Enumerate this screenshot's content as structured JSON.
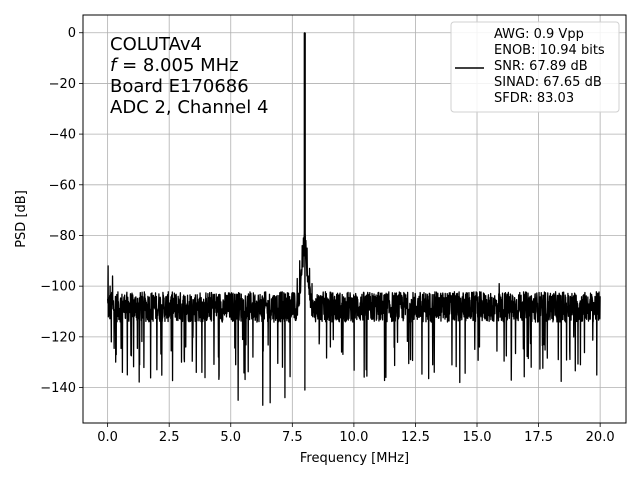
{
  "chart_data": {
    "type": "line",
    "xlabel": "Frequency [MHz]",
    "ylabel": "PSD [dB]",
    "xlim": [
      -1,
      21.05
    ],
    "ylim": [
      -154,
      7
    ],
    "xticks": [
      0.0,
      2.5,
      5.0,
      7.5,
      10.0,
      12.5,
      15.0,
      17.5,
      20.0
    ],
    "xtick_labels": [
      "0.0",
      "2.5",
      "5.0",
      "7.5",
      "10.0",
      "12.5",
      "15.0",
      "17.5",
      "20.0"
    ],
    "yticks": [
      0,
      -20,
      -40,
      -60,
      -80,
      -100,
      -120,
      -140
    ],
    "ytick_labels": [
      "0",
      "−20",
      "−40",
      "−60",
      "−80",
      "−100",
      "−120",
      "−140"
    ],
    "grid": true,
    "annotation_lines": [
      {
        "prefix": "",
        "italic": "",
        "text": "COLUTAv4"
      },
      {
        "prefix": "",
        "italic": "f",
        "text": " = 8.005 MHz"
      },
      {
        "prefix": "",
        "italic": "",
        "text": "Board E170686"
      },
      {
        "prefix": "",
        "italic": "",
        "text": "ADC 2, Channel 4"
      }
    ],
    "legend_placement": "top-right",
    "legend_lines": [
      "AWG: 0.9 Vpp",
      "ENOB: 10.94 bits",
      "SNR: 67.89 dB",
      "SINAD: 67.65 dB",
      "SFDR: 83.03"
    ],
    "series": [
      {
        "color": "#000000",
        "noise_floor_db": -110,
        "noise_spread_db": 10,
        "fundamental": {
          "x": 8.005,
          "y": 0
        },
        "skirt": {
          "x": 8.0,
          "y": -80,
          "half_width_mhz": 0.4
        },
        "points": [
          [
            0.0,
            -105
          ],
          [
            0.02,
            -92
          ],
          [
            0.05,
            -108
          ],
          [
            0.1,
            -100
          ],
          [
            0.15,
            -122
          ],
          [
            0.2,
            -96
          ],
          [
            0.3,
            -115
          ],
          [
            0.35,
            -127
          ],
          [
            0.5,
            -110
          ],
          [
            0.6,
            -134
          ],
          [
            0.7,
            -108
          ],
          [
            0.8,
            -135
          ],
          [
            1.0,
            -112
          ],
          [
            1.3,
            -131
          ],
          [
            1.6,
            -110
          ],
          [
            2.0,
            -133
          ],
          [
            2.5,
            -112
          ],
          [
            3.0,
            -130
          ],
          [
            3.3,
            -110
          ],
          [
            3.6,
            -134
          ],
          [
            4.0,
            -113
          ],
          [
            4.5,
            -128
          ],
          [
            4.9,
            -110
          ],
          [
            5.2,
            -131
          ],
          [
            5.3,
            -145
          ],
          [
            5.5,
            -112
          ],
          [
            5.9,
            -128
          ],
          [
            6.2,
            -111
          ],
          [
            6.3,
            -147
          ],
          [
            6.5,
            -114
          ],
          [
            6.6,
            -146
          ],
          [
            6.9,
            -112
          ],
          [
            7.1,
            -132
          ],
          [
            7.2,
            -144
          ],
          [
            7.4,
            -110
          ],
          [
            7.6,
            -104
          ],
          [
            7.7,
            -97
          ],
          [
            7.8,
            -90
          ],
          [
            7.9,
            -84
          ],
          [
            7.95,
            -81
          ],
          [
            8.0,
            -78
          ],
          [
            8.005,
            0
          ],
          [
            8.01,
            -141
          ],
          [
            8.05,
            -82
          ],
          [
            8.1,
            -85
          ],
          [
            8.2,
            -93
          ],
          [
            8.3,
            -99
          ],
          [
            8.4,
            -106
          ],
          [
            8.6,
            -120
          ],
          [
            9.0,
            -112
          ],
          [
            9.5,
            -126
          ],
          [
            10.0,
            -113
          ],
          [
            10.5,
            -133
          ],
          [
            11.0,
            -111
          ],
          [
            11.3,
            -136
          ],
          [
            11.7,
            -112
          ],
          [
            12.3,
            -129
          ],
          [
            12.8,
            -111
          ],
          [
            13.2,
            -131
          ],
          [
            13.7,
            -113
          ],
          [
            14.3,
            -138
          ],
          [
            14.8,
            -110
          ],
          [
            15.1,
            -124
          ],
          [
            15.5,
            -111
          ],
          [
            15.9,
            -99
          ],
          [
            16.0,
            -112
          ],
          [
            16.4,
            -126
          ],
          [
            16.8,
            -111
          ],
          [
            17.2,
            -132
          ],
          [
            17.7,
            -112
          ],
          [
            18.3,
            -129
          ],
          [
            18.8,
            -111
          ],
          [
            19.2,
            -131
          ],
          [
            19.6,
            -113
          ],
          [
            20.0,
            -104
          ]
        ]
      }
    ]
  }
}
